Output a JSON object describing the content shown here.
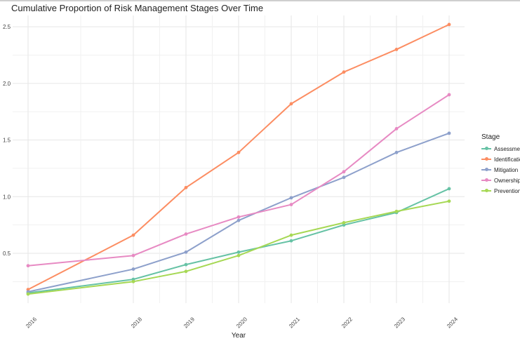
{
  "chart_data": {
    "type": "line",
    "title": "Cumulative Proportion of Risk Management Stages Over Time",
    "xlabel": "Year",
    "ylabel": "",
    "x": [
      2016,
      2018,
      2019,
      2020,
      2021,
      2022,
      2023,
      2024
    ],
    "xlim": [
      2016,
      2024
    ],
    "ylim": [
      0.06,
      2.6
    ],
    "yticks": [
      0.5,
      1.0,
      1.5,
      2.0,
      2.5
    ],
    "ytick_labels": [
      "0.5",
      "1.0",
      "1.5",
      "2.0",
      "2.5"
    ],
    "grid": true,
    "legend_title": "Stage",
    "legend_position": "right",
    "series": [
      {
        "name": "Assessment",
        "color": "#66c2a5",
        "values": [
          0.15,
          0.27,
          0.4,
          0.51,
          0.61,
          0.75,
          0.86,
          1.07
        ]
      },
      {
        "name": "Identification",
        "color": "#fc8d62",
        "values": [
          0.18,
          0.66,
          1.08,
          1.39,
          1.82,
          2.1,
          2.3,
          2.52
        ]
      },
      {
        "name": "Mitigation",
        "color": "#8da0cb",
        "values": [
          0.16,
          0.36,
          0.51,
          0.79,
          0.99,
          1.17,
          1.39,
          1.56
        ]
      },
      {
        "name": "Ownership",
        "color": "#e78ac3",
        "values": [
          0.39,
          0.48,
          0.67,
          0.82,
          0.93,
          1.22,
          1.6,
          1.9
        ]
      },
      {
        "name": "Prevention",
        "color": "#a6d854",
        "values": [
          0.14,
          0.25,
          0.34,
          0.48,
          0.66,
          0.77,
          0.87,
          0.96
        ]
      }
    ]
  }
}
